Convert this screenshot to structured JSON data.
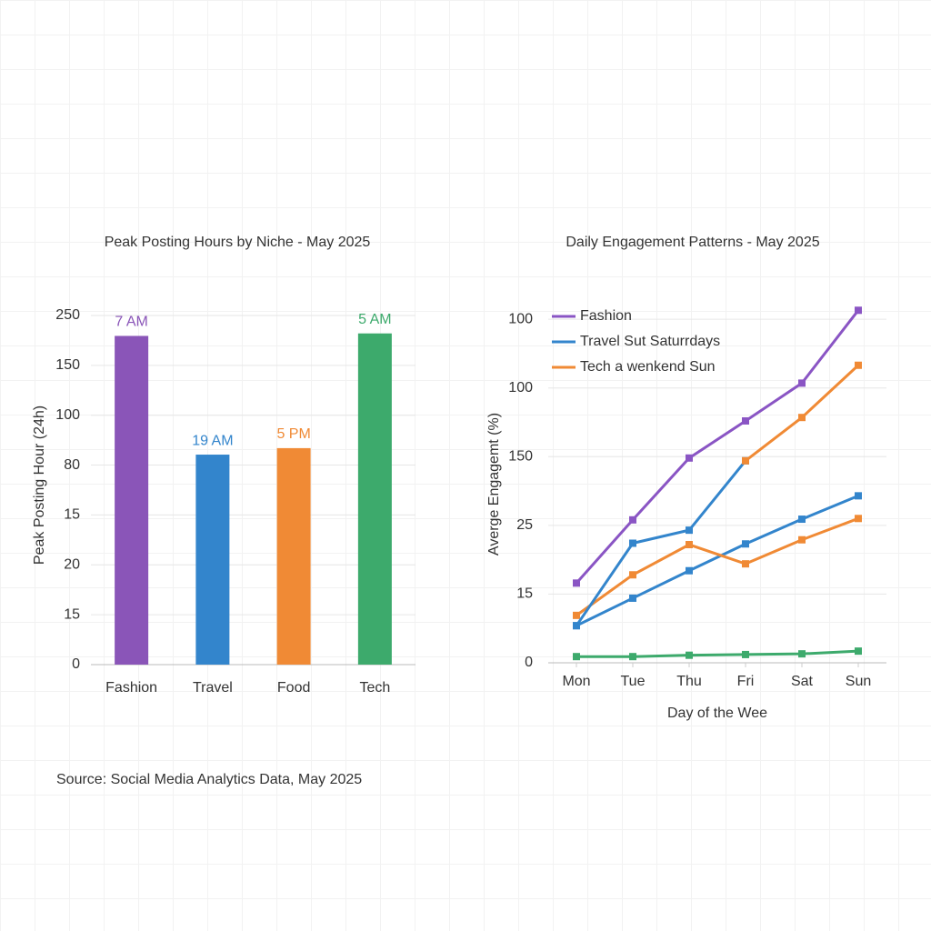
{
  "chart_data": [
    {
      "type": "bar",
      "title": "Peak Posting Hours by Niche - May 2025",
      "y_label": "Peak Posting Hour (24h)",
      "categories": [
        "Fashion",
        "Travel",
        "Food",
        "Tech"
      ],
      "values": [
        6.59,
        4.21,
        4.34,
        6.64
      ],
      "bar_labels": [
        "7 AM",
        "19 AM",
        "5 PM",
        "5 AM"
      ],
      "colors": [
        "#8a55b8",
        "#3385cc",
        "#f08a35",
        "#3daa6c"
      ],
      "ylim": [
        0,
        7.2
      ],
      "yticks": [
        {
          "value": 0,
          "label": "0"
        },
        {
          "value": 1,
          "label": "15"
        },
        {
          "value": 2,
          "label": "20"
        },
        {
          "value": 3,
          "label": "15"
        },
        {
          "value": 4,
          "label": "80"
        },
        {
          "value": 5,
          "label": "100"
        },
        {
          "value": 6,
          "label": "150"
        },
        {
          "value": 7,
          "label": "250"
        }
      ],
      "grid": true
    },
    {
      "type": "line",
      "title": "Daily Engagement Patterns - May 2025",
      "y_label": "Averge Engagemt (%)",
      "x_label": "Day of the Wee",
      "categories": [
        "Mon",
        "Tue",
        "Thu",
        "Fri",
        "Sat",
        "Sun"
      ],
      "series": [
        {
          "name": "Fashion",
          "color": "#8a55c4",
          "values": [
            1.16,
            2.08,
            2.98,
            3.52,
            4.07,
            5.13
          ]
        },
        {
          "name": "Travel Sut Saturrdays",
          "color": "#3385cc",
          "values": [
            0.54,
            0.94,
            1.34,
            1.73,
            2.09,
            2.43
          ]
        },
        {
          "name": "Tech a wenkend Sun",
          "color": "#f08a35",
          "values": [
            0.69,
            1.28,
            1.72,
            1.44,
            1.79,
            2.1
          ]
        },
        {
          "color": "#3daa6c",
          "values": [
            0.09,
            0.09,
            0.11,
            0.12,
            0.13,
            0.17
          ]
        },
        {
          "color": "#3385cc",
          "values": [
            0.54,
            1.74,
            1.93,
            2.94,
            null,
            null
          ]
        },
        {
          "color": "#f08a35",
          "values": [
            null,
            null,
            null,
            2.94,
            3.57,
            4.33
          ]
        }
      ],
      "ylim": [
        0,
        5.2
      ],
      "yticks": [
        {
          "value": 0,
          "label": "0"
        },
        {
          "value": 1,
          "label": "15"
        },
        {
          "value": 2,
          "label": "25"
        },
        {
          "value": 3,
          "label": "150"
        },
        {
          "value": 4,
          "label": "100"
        },
        {
          "value": 5,
          "label": "100"
        }
      ],
      "grid": true,
      "legend": "top-left"
    }
  ],
  "source": "Source: Social Media Analytics Data, May 2025"
}
